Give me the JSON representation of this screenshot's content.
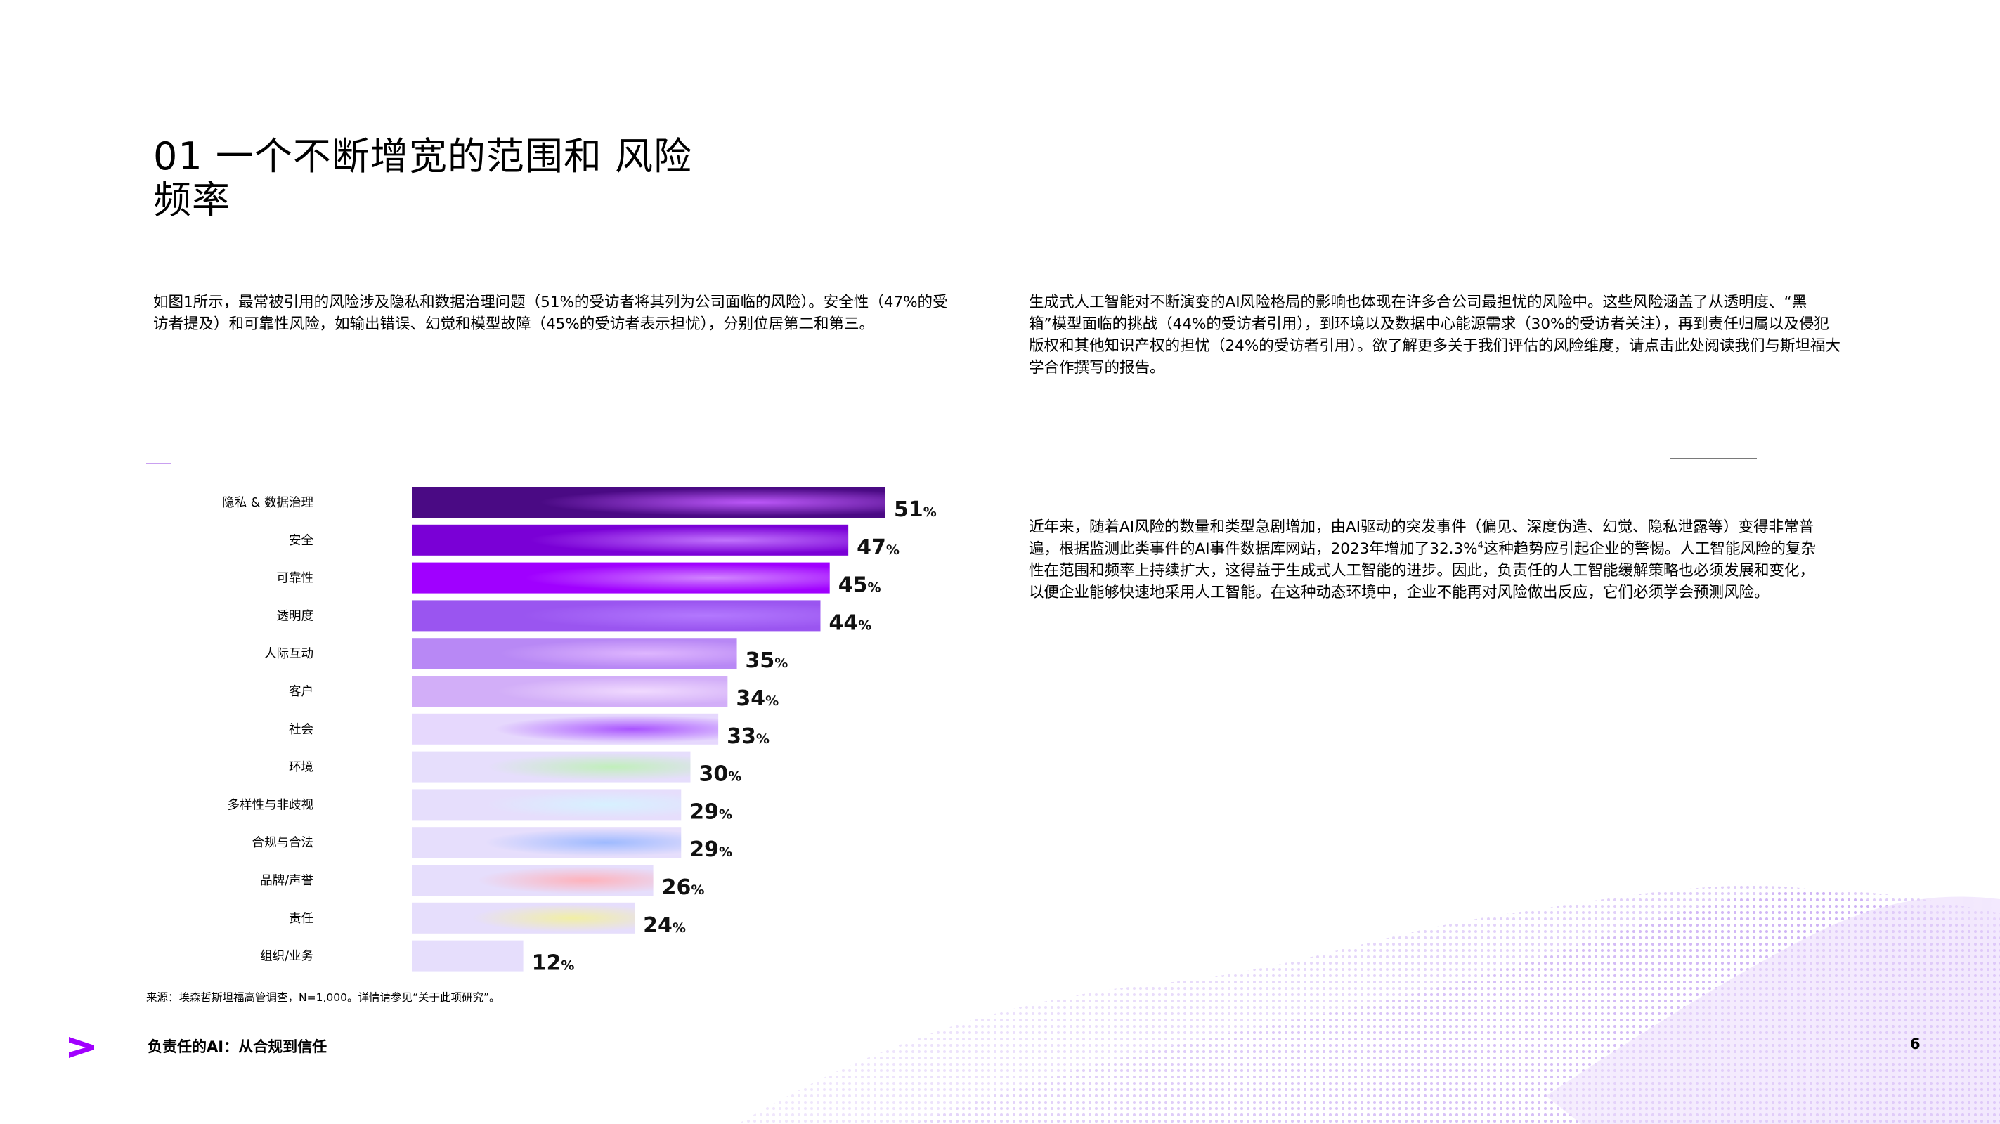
{
  "heading": {
    "line1": "01 一个不断增宽的范围和 风险",
    "line2": "频率"
  },
  "intro_paragraph": "如图1所示，最常被引用的风险涉及隐私和数据治理问题（51%的受访者将其列为公司面临的风险）。安全性（47%的受访者提及）和可靠性风险，如输出错误、幻觉和模型故障（45%的受访者表示担忧），分别位居第二和第三。",
  "right_paragraph_1": "生成式人工智能对不断演变的AI风险格局的影响也体现在许多合公司最担忧的风险中。这些风险涵盖了从透明度、“黑箱”模型面临的挑战（44%的受访者引用），到环境以及数据中心能源需求（30%的受访者关注），再到责任归属以及侵犯版权和其他知识产权的担忧（24%的受访者引用）。欲了解更多关于我们评估的风险维度，请点击此处阅读我们与斯坦福大学合作撰写的报告。",
  "right_paragraph_2": {
    "before": "近年来，随着AI风险的数量和类型急剧增加，由AI驱动的突发事件（偏见、深度伪造、幻觉、隐私泄露等）变得非常普遍，根据监测此类事件的AI事件数据库网站，2023年增加了32.3%",
    "sup": "4",
    "after": "这种趋势应引起企业的警惕。人工智能风险的复杂性在范围和频率上持续扩大，这得益于生成式人工智能的进步。因此，负责任的人工智能缓解策略也必须发展和变化，以便企业能够快速地采用人工智能。在这种动态环境中，企业不能再对风险做出反应，它们必须学会预测风险。"
  },
  "chart_data": {
    "type": "bar",
    "orientation": "horizontal",
    "categories": [
      "隐私 & 数据治理",
      "安全",
      "可靠性",
      "透明度",
      "人际互动",
      "客户",
      "社会",
      "环境",
      "多样性与非歧视",
      "合规与合法",
      "品牌/声誉",
      "责任",
      "组织/业务"
    ],
    "values": [
      51,
      47,
      45,
      44,
      35,
      34,
      33,
      30,
      29,
      29,
      26,
      24,
      12
    ],
    "value_suffix": "%",
    "xlim": [
      0,
      51
    ],
    "grid": false,
    "legend": "none",
    "colors": {
      "bars": [
        "#4a0a84",
        "#7a00d6",
        "#a000ff",
        "#9a55f0",
        "#b888f5",
        "#d2aef8",
        "#e6d8fd",
        "#e6defc",
        "#e6defc",
        "#e6defc",
        "#e6defc",
        "#e6defc",
        "#e6defc"
      ],
      "accents": [
        "#c25cff",
        "#c57aff",
        "#d48cff",
        "#b47aff",
        "#e0b8ff",
        "#f2dcff",
        "#a64dff",
        "#bff0b8",
        "#d6f2ff",
        "#9ab8ff",
        "#ffb0b8",
        "#f2f0a0",
        "#e6defc"
      ]
    }
  },
  "source_note": "来源：埃森哲斯坦福高管调查，N=1,000。详情请参见“关于此项研究”。",
  "footer": {
    "logo": "accenture-chevron-icon",
    "title": "负责任的AI：从合规到信任",
    "page_number": "6"
  }
}
